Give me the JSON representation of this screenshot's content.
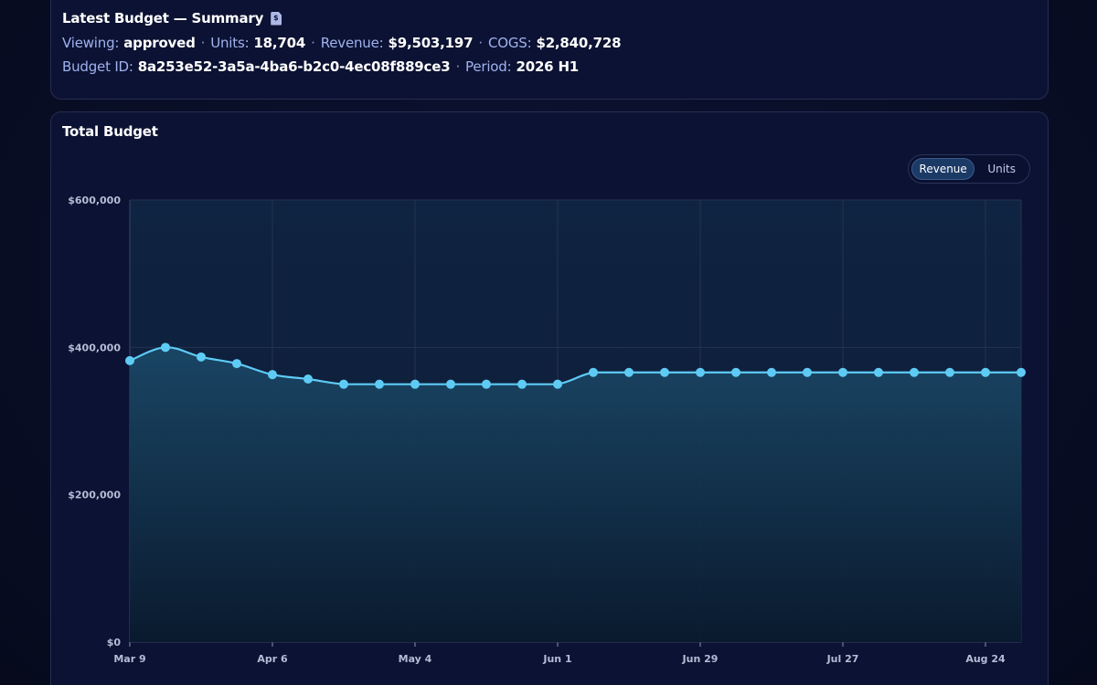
{
  "summary": {
    "title": "Latest Budget — Summary",
    "icon": "document-dollar-icon",
    "viewing_label": "Viewing:",
    "viewing_value": "approved",
    "units_label": "Units:",
    "units_value": "18,704",
    "revenue_label": "Revenue:",
    "revenue_value": "$9,503,197",
    "cogs_label": "COGS:",
    "cogs_value": "$2,840,728",
    "budget_id_label": "Budget ID:",
    "budget_id_value": "8a253e52-3a5a-4ba6-b2c0-4ec08f889ce3",
    "period_label": "Period:",
    "period_value": "2026 H1",
    "separator": "·"
  },
  "chart": {
    "title": "Total Budget",
    "toggle": {
      "options": [
        "Revenue",
        "Units"
      ],
      "selected": "Revenue"
    }
  },
  "colors": {
    "line": "#5ecbf5",
    "area_top": "#1a4766",
    "area_bottom": "#0a1a2e",
    "grid": "#26324f",
    "background": "#0c1233",
    "accent": "#1c3a66"
  },
  "chart_data": {
    "type": "area",
    "title": "",
    "xlabel": "",
    "ylabel": "",
    "x_ticks": [
      "Mar 9",
      "Apr 6",
      "May 4",
      "Jun 1",
      "Jun 29",
      "Jul 27",
      "Aug 24"
    ],
    "y_ticks": [
      "$0",
      "$200,000",
      "$400,000",
      "$600,000"
    ],
    "ylim": [
      0,
      600000
    ],
    "grid": true,
    "legend": "none",
    "series": [
      {
        "values": [
          382000,
          400000,
          387000,
          378000,
          363000,
          357000,
          350000,
          350000,
          350000,
          350000,
          350000,
          350000,
          350000,
          366000,
          366000,
          366000,
          366000,
          366000,
          366000,
          366000,
          366000,
          366000,
          366000,
          366000,
          366000,
          366000
        ]
      }
    ]
  }
}
